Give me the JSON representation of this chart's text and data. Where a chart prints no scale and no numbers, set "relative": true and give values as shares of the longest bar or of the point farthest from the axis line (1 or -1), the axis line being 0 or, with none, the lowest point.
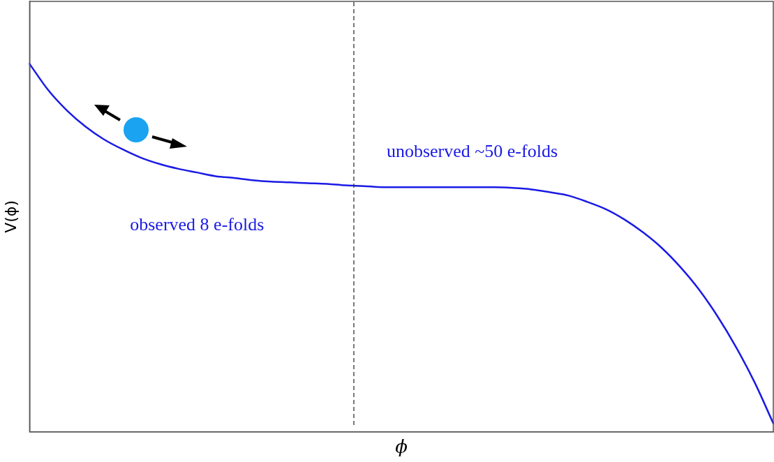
{
  "chart_data": {
    "type": "line",
    "relative": true,
    "xlabel": "ϕ",
    "ylabel": "V(ϕ)",
    "categories": [
      null,
      null,
      null,
      null,
      null,
      null,
      null,
      null,
      null,
      null,
      null,
      null,
      null,
      null,
      null,
      null,
      null,
      null,
      null,
      null,
      null,
      null,
      null,
      null,
      null,
      null,
      null,
      null,
      null,
      null,
      null,
      null,
      null,
      null,
      null,
      null,
      null,
      null,
      null,
      null,
      null
    ],
    "series": [
      {
        "color": "#1a1ae6",
        "values": [
          1.0,
          0.929,
          0.874,
          0.83,
          0.795,
          0.768,
          0.745,
          0.728,
          0.715,
          0.705,
          0.695,
          0.69,
          0.684,
          0.68,
          0.678,
          0.676,
          0.674,
          0.67,
          0.668,
          0.665,
          0.665,
          0.665,
          0.665,
          0.665,
          0.665,
          0.665,
          0.663,
          0.659,
          0.651,
          0.642,
          0.625,
          0.605,
          0.577,
          0.542,
          0.5,
          0.448,
          0.387,
          0.314,
          0.23,
          0.134,
          0.023
        ]
      }
    ],
    "annotations": [
      "unobserved ~50 e-folds",
      "observed 8 e-folds"
    ],
    "grid": false,
    "legend": false,
    "marker": "none",
    "line_style": "solid"
  }
}
